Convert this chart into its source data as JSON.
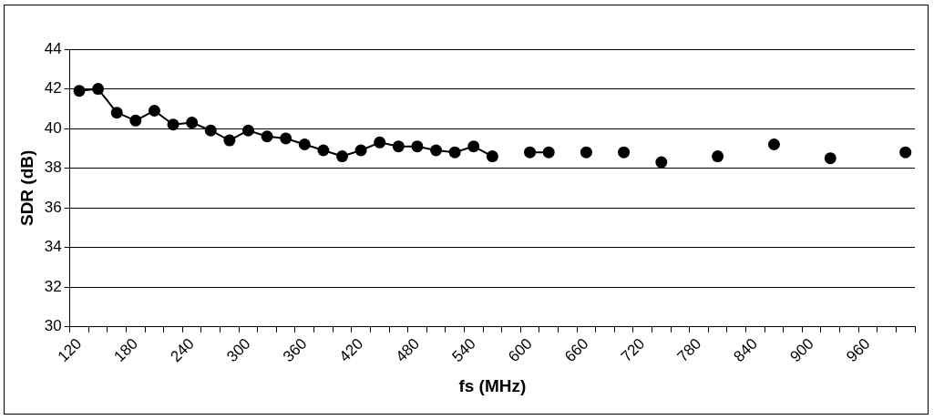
{
  "chart_data": {
    "type": "line",
    "xlabel": "fs (MHz)",
    "ylabel": "SDR (dB)",
    "categories": [
      "120",
      null,
      null,
      "180",
      null,
      null,
      "240",
      null,
      null,
      "300",
      null,
      null,
      "360",
      null,
      null,
      "420",
      null,
      null,
      "480",
      null,
      null,
      "540",
      null,
      null,
      "600",
      null,
      null,
      "660",
      null,
      null,
      "720",
      null,
      null,
      "780",
      null,
      null,
      "840",
      null,
      null,
      "900",
      null,
      null,
      "960",
      null,
      null
    ],
    "series": [
      {
        "color": "#000000",
        "values": [
          41.9,
          42.0,
          40.8,
          40.4,
          40.9,
          40.2,
          40.3,
          39.9,
          39.4,
          39.9,
          39.6,
          39.5,
          39.2,
          38.9,
          38.6,
          38.9,
          39.3,
          39.1,
          39.1,
          38.9,
          38.8,
          39.1,
          38.6,
          null,
          38.8,
          38.8,
          null,
          38.8,
          null,
          38.8,
          null,
          38.3,
          null,
          null,
          38.6,
          null,
          null,
          39.2,
          null,
          null,
          38.5,
          null,
          null,
          null,
          38.8
        ]
      }
    ],
    "ylim": [
      30,
      44
    ],
    "yticks": [
      30,
      32,
      34,
      36,
      38,
      40,
      42,
      44
    ],
    "grid": "y",
    "marker": "circle",
    "line_style": "solid"
  }
}
